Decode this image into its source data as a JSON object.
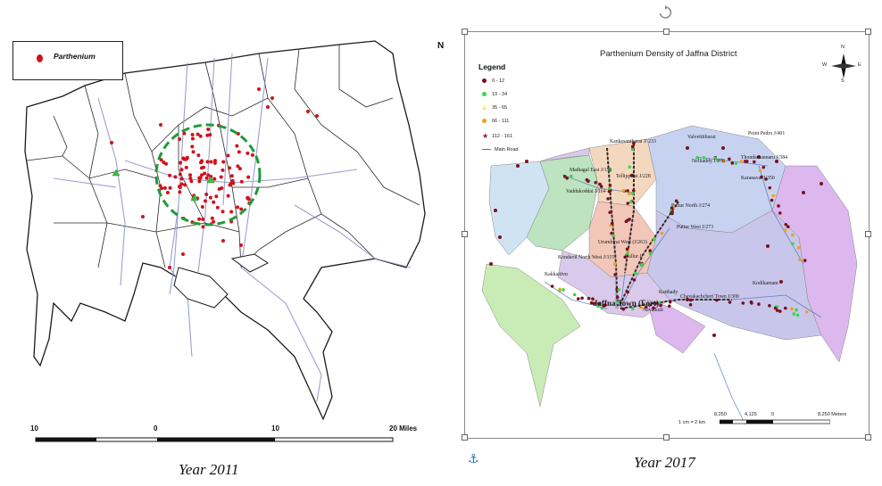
{
  "left_panel": {
    "legend_label": "Parthenium",
    "scale_labels": [
      "10",
      "0",
      "10",
      "20  Miles"
    ],
    "north_label": "N",
    "caption": "Year 2011",
    "colors": {
      "point": "#d0121b",
      "triangle": "#3fbf3f",
      "circle": "#1f9a3a"
    }
  },
  "right_panel": {
    "title": "Parthenium Density of Jaffna District",
    "legend_title": "Legend",
    "legend_items": [
      {
        "label": "0 - 12",
        "color": "#7a1020",
        "symbol": "circle"
      },
      {
        "label": "13 - 34",
        "color": "#3fd34a",
        "symbol": "circle"
      },
      {
        "label": "35 - 65",
        "color": "#f2f25a",
        "symbol": "triangle"
      },
      {
        "label": "66 - 111",
        "color": "#f0a020",
        "symbol": "circle"
      },
      {
        "label": "112 - 161",
        "color": "#a0102a",
        "symbol": "star"
      },
      {
        "label": "Main Road",
        "color": "#4a6fb0",
        "symbol": "line"
      }
    ],
    "places": [
      "Kankesanthurai J/ 233",
      "Valvettithurai",
      "Point Pedro J/401",
      "Thondamannaru J/384",
      "Nelliaddy J/373",
      "Karanavai J/350",
      "Tellippalai J/228",
      "Mathagal East J/150",
      "Vaddukoddai J/164",
      "Puttur North J/274",
      "Puttur West J/273",
      "Urumbirai West (J/263)",
      "Kondavil North West J/115",
      "Kakkaitivu",
      "Kaithady",
      "Chavakachcheri Town J/300",
      "Kodikamam",
      "Jaffna Town (Fort)",
      "Nallur J/",
      "Navatkuli"
    ],
    "scale_labels": [
      "8,250",
      "4,125",
      "0",
      "8,250 Meters"
    ],
    "scale_note": "1 cm = 2 km",
    "compass": {
      "n": "N",
      "s": "S",
      "e": "E",
      "w": "W"
    },
    "caption": "Year 2017"
  }
}
